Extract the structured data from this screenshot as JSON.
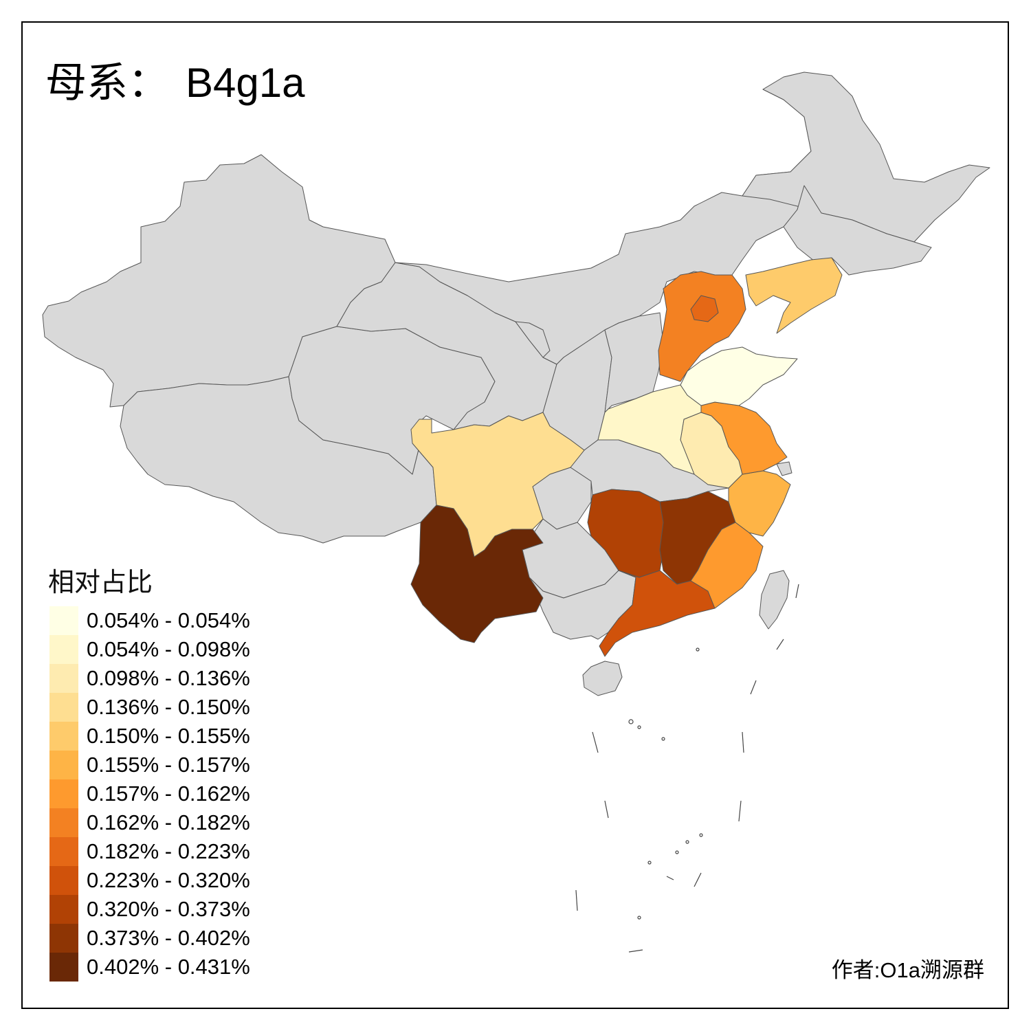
{
  "title": {
    "prefix": "母系：",
    "haplogroup": "B4g1a"
  },
  "legend": {
    "title": "相对占比",
    "items": [
      {
        "label": "0.054% - 0.054%",
        "color": "#FFFFE5"
      },
      {
        "label": "0.054% - 0.098%",
        "color": "#FFF7C9"
      },
      {
        "label": "0.098% - 0.136%",
        "color": "#FEEBB0"
      },
      {
        "label": "0.136% - 0.150%",
        "color": "#FEDE91"
      },
      {
        "label": "0.150% - 0.155%",
        "color": "#FECB6B"
      },
      {
        "label": "0.155% - 0.157%",
        "color": "#FEB446"
      },
      {
        "label": "0.157% - 0.162%",
        "color": "#FE9A2E"
      },
      {
        "label": "0.162% - 0.182%",
        "color": "#F38122"
      },
      {
        "label": "0.182% - 0.223%",
        "color": "#E56816"
      },
      {
        "label": "0.223% - 0.320%",
        "color": "#D0520B"
      },
      {
        "label": "0.320% - 0.373%",
        "color": "#B14205"
      },
      {
        "label": "0.373% - 0.402%",
        "color": "#8E3504"
      },
      {
        "label": "0.402% - 0.431%",
        "color": "#6A2806"
      }
    ]
  },
  "regions": {
    "no_data_color": "#D9D9D9",
    "values": {
      "yunnan": 0.431,
      "jiangxi": 0.39,
      "hunan": 0.35,
      "guangdong": 0.28,
      "beijing": 0.2,
      "hebei": 0.17,
      "fujian": 0.16,
      "jiangsu": 0.16,
      "zhejiang": 0.156,
      "liaoning": 0.152,
      "sichuan": 0.14,
      "anhui": 0.12,
      "henan": 0.08,
      "shandong": 0.054
    }
  },
  "author": "作者:O1a溯源群"
}
